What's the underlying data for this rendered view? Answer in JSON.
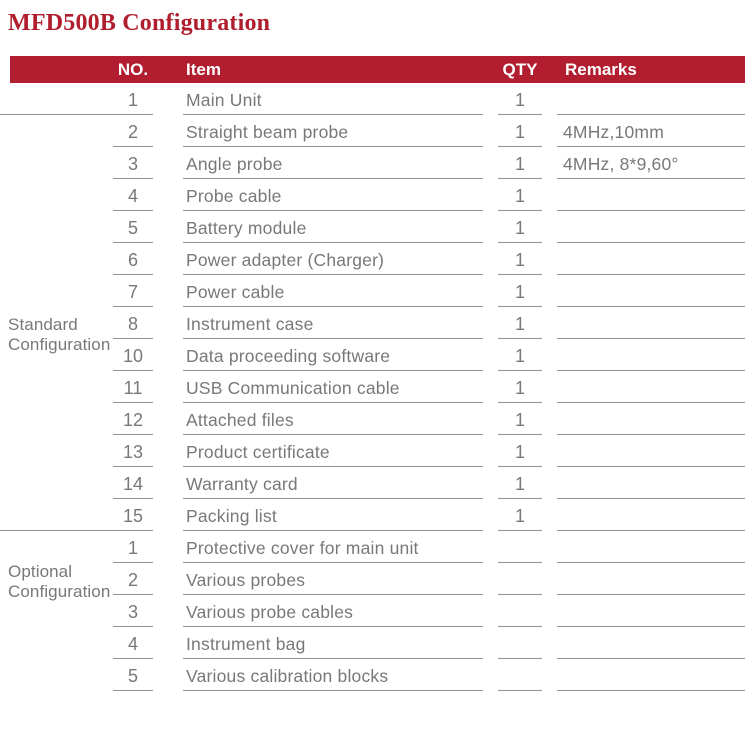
{
  "title": "MFD500B Configuration",
  "colors": {
    "accent_red": "#B21E2F",
    "title_red": "#B01E2E",
    "text_gray": "#77787B",
    "line_gray": "#8F9194"
  },
  "table": {
    "headers": {
      "no": "NO.",
      "item": "Item",
      "qty": "QTY",
      "remarks": "Remarks"
    },
    "groups": [
      {
        "label": "Standard Configuration",
        "rows": [
          {
            "no": "1",
            "item": "Main Unit",
            "qty": "1",
            "remarks": ""
          },
          {
            "no": "2",
            "item": "Straight beam probe",
            "qty": "1",
            "remarks": "4MHz,10mm"
          },
          {
            "no": "3",
            "item": "Angle probe",
            "qty": "1",
            "remarks": "4MHz, 8*9,60°"
          },
          {
            "no": "4",
            "item": "Probe cable",
            "qty": "1",
            "remarks": ""
          },
          {
            "no": "5",
            "item": "Battery module",
            "qty": "1",
            "remarks": ""
          },
          {
            "no": "6",
            "item": "Power adapter (Charger)",
            "qty": "1",
            "remarks": ""
          },
          {
            "no": "7",
            "item": "Power cable",
            "qty": "1",
            "remarks": ""
          },
          {
            "no": "8",
            "item": "Instrument case",
            "qty": "1",
            "remarks": ""
          },
          {
            "no": "10",
            "item": "Data proceeding software",
            "qty": "1",
            "remarks": ""
          },
          {
            "no": "11",
            "item": "USB Communication cable",
            "qty": "1",
            "remarks": ""
          },
          {
            "no": "12",
            "item": "Attached files",
            "qty": "1",
            "remarks": ""
          },
          {
            "no": "13",
            "item": "Product certificate",
            "qty": "1",
            "remarks": ""
          },
          {
            "no": "14",
            "item": "Warranty card",
            "qty": "1",
            "remarks": ""
          },
          {
            "no": "15",
            "item": "Packing list",
            "qty": "1",
            "remarks": ""
          }
        ]
      },
      {
        "label": "Optional Configuration",
        "rows": [
          {
            "no": "1",
            "item": "Protective cover for main unit",
            "qty": "",
            "remarks": ""
          },
          {
            "no": "2",
            "item": "Various probes",
            "qty": "",
            "remarks": ""
          },
          {
            "no": "3",
            "item": "Various probe cables",
            "qty": "",
            "remarks": ""
          },
          {
            "no": "4",
            "item": "Instrument bag",
            "qty": "",
            "remarks": ""
          },
          {
            "no": "5",
            "item": "Various calibration blocks",
            "qty": "",
            "remarks": ""
          }
        ]
      }
    ]
  }
}
